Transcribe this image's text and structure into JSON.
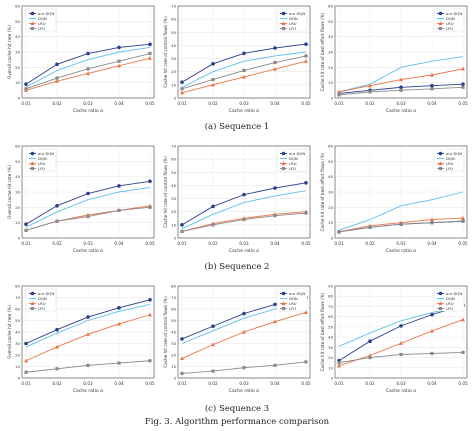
{
  "caption": "Fig. 3. Algorithm performance comparison",
  "colors": {
    "our DQN": "#2b3f8c",
    "DQN": "#5bc0eb",
    "LRU": "#e9774a",
    "LFU": "#8a8a8a"
  },
  "rows": [
    {
      "label": "(a) Sequence 1"
    },
    {
      "label": "(b) Sequence 2"
    },
    {
      "label": "(c) Sequence 3"
    }
  ],
  "chart_data": [
    {
      "type": "line",
      "row": 0,
      "col": 0,
      "xlabel": "Cache ratio α",
      "ylabel": "Overall cache hit rate (%)",
      "x": [
        "0.01",
        "0.02",
        "0.03",
        "0.04",
        "0.05"
      ],
      "ylim": [
        0,
        60
      ],
      "yticks": [
        0,
        10,
        20,
        30,
        40,
        50,
        60
      ],
      "ytick_labels": [
        "0",
        "10",
        "20",
        "30",
        "40",
        "50",
        "60"
      ],
      "legend": [
        "our DQN",
        "DQN",
        "LRU",
        "LFU"
      ],
      "legend_position": "top-left",
      "series": [
        {
          "name": "our DQN",
          "values": [
            9,
            22,
            29,
            33,
            35
          ]
        },
        {
          "name": "DQN",
          "values": [
            7,
            18,
            25,
            30,
            33
          ]
        },
        {
          "name": "LRU",
          "values": [
            5,
            11,
            16,
            21,
            26
          ]
        },
        {
          "name": "LFU",
          "values": [
            6,
            13,
            19,
            24,
            29
          ]
        }
      ]
    },
    {
      "type": "line",
      "row": 0,
      "col": 1,
      "xlabel": "Cache ratio α",
      "ylabel": "Cache hit rate of control flows (%)",
      "x": [
        "0.01",
        "0.02",
        "0.03",
        "0.04",
        "0.05"
      ],
      "ylim": [
        0,
        70
      ],
      "yticks": [
        0,
        10,
        20,
        30,
        40,
        50,
        60,
        70
      ],
      "ytick_labels": [
        "0",
        "10",
        "20",
        "30",
        "40",
        "50",
        "60",
        "70"
      ],
      "legend": [
        "our DQN",
        "DQN",
        "LRU",
        "LFU"
      ],
      "legend_position": "top-right",
      "series": [
        {
          "name": "our DQN",
          "values": [
            12,
            26,
            34,
            38,
            41
          ]
        },
        {
          "name": "DQN",
          "values": [
            8,
            20,
            28,
            32,
            35
          ]
        },
        {
          "name": "LRU",
          "values": [
            4,
            10,
            16,
            22,
            28
          ]
        },
        {
          "name": "LFU",
          "values": [
            7,
            14,
            21,
            27,
            32
          ]
        }
      ]
    },
    {
      "type": "line",
      "row": 0,
      "col": 2,
      "xlabel": "Cache ratio α",
      "ylabel": "Cache hit rate of best effort flows (%)",
      "x": [
        "0.01",
        "0.02",
        "0.03",
        "0.04",
        "0.05"
      ],
      "ylim": [
        0,
        60
      ],
      "yticks": [
        0,
        10,
        20,
        30,
        40,
        50,
        60
      ],
      "ytick_labels": [
        "0",
        "10",
        "20",
        "30",
        "40",
        "50",
        "60"
      ],
      "legend": [
        "our DQN",
        "DQN",
        "LRU",
        "LFU"
      ],
      "legend_position": "top-right",
      "series": [
        {
          "name": "our DQN",
          "values": [
            3,
            5,
            7,
            8,
            9
          ]
        },
        {
          "name": "DQN",
          "values": [
            4,
            9,
            20,
            24,
            27
          ]
        },
        {
          "name": "LRU",
          "values": [
            4,
            8,
            12,
            15,
            19
          ]
        },
        {
          "name": "LFU",
          "values": [
            2,
            4,
            5,
            6,
            7
          ]
        }
      ]
    },
    {
      "type": "line",
      "row": 1,
      "col": 0,
      "xlabel": "Cache ratio α",
      "ylabel": "Overall cache hit rate (%)",
      "x": [
        "0.01",
        "0.02",
        "0.03",
        "0.04",
        "0.05"
      ],
      "ylim": [
        0,
        60
      ],
      "yticks": [
        0,
        10,
        20,
        30,
        40,
        50,
        60
      ],
      "ytick_labels": [
        "0",
        "10",
        "20",
        "30",
        "40",
        "50",
        "60"
      ],
      "legend": [
        "our DQN",
        "DQN",
        "LRU",
        "LFU"
      ],
      "legend_position": "top-left",
      "series": [
        {
          "name": "our DQN",
          "values": [
            9,
            21,
            29,
            34,
            37
          ]
        },
        {
          "name": "DQN",
          "values": [
            7,
            17,
            25,
            30,
            33
          ]
        },
        {
          "name": "LRU",
          "values": [
            5,
            11,
            15,
            18,
            21
          ]
        },
        {
          "name": "LFU",
          "values": [
            5,
            11,
            14,
            18,
            20
          ]
        }
      ]
    },
    {
      "type": "line",
      "row": 1,
      "col": 1,
      "xlabel": "Cache ratio α",
      "ylabel": "Cache hit rate of control flows (%)",
      "x": [
        "0.01",
        "0.02",
        "0.03",
        "0.04",
        "0.05"
      ],
      "ylim": [
        0,
        70
      ],
      "yticks": [
        0,
        10,
        20,
        30,
        40,
        50,
        60,
        70
      ],
      "ytick_labels": [
        "0",
        "10",
        "20",
        "30",
        "40",
        "50",
        "60",
        "70"
      ],
      "legend": [
        "our DQN",
        "DQN",
        "LRU",
        "LFU"
      ],
      "legend_position": "top-right",
      "series": [
        {
          "name": "our DQN",
          "values": [
            10,
            24,
            33,
            38,
            42
          ]
        },
        {
          "name": "DQN",
          "values": [
            7,
            18,
            27,
            32,
            36
          ]
        },
        {
          "name": "LRU",
          "values": [
            5,
            11,
            15,
            18,
            20
          ]
        },
        {
          "name": "LFU",
          "values": [
            5,
            10,
            14,
            17,
            19
          ]
        }
      ]
    },
    {
      "type": "line",
      "row": 1,
      "col": 2,
      "xlabel": "Cache ratio α",
      "ylabel": "Cache hit rate of best effort flows (%)",
      "x": [
        "0.01",
        "0.02",
        "0.03",
        "0.04",
        "0.05"
      ],
      "ylim": [
        0,
        60
      ],
      "yticks": [
        0,
        10,
        20,
        30,
        40,
        50,
        60
      ],
      "ytick_labels": [
        "0",
        "10",
        "20",
        "30",
        "40",
        "50",
        "60"
      ],
      "legend": [
        "our DQN",
        "DQN",
        "LRU",
        "LFU"
      ],
      "legend_position": "top-right",
      "series": [
        {
          "name": "our DQN",
          "values": [
            4,
            7,
            9,
            10,
            11
          ]
        },
        {
          "name": "DQN",
          "values": [
            5,
            12,
            21,
            25,
            30
          ]
        },
        {
          "name": "LRU",
          "values": [
            4,
            8,
            10,
            12,
            13
          ]
        },
        {
          "name": "LFU",
          "values": [
            4,
            7,
            9,
            10,
            11
          ]
        }
      ]
    },
    {
      "type": "line",
      "row": 2,
      "col": 0,
      "xlabel": "Cache ratio α",
      "ylabel": "Overall cache hit rate (%)",
      "x": [
        "0.01",
        "0.02",
        "0.03",
        "0.04",
        "0.05"
      ],
      "ylim": [
        0,
        80
      ],
      "yticks": [
        0,
        10,
        20,
        30,
        40,
        50,
        60,
        70,
        80
      ],
      "ytick_labels": [
        "0",
        "10",
        "20",
        "30",
        "40",
        "50",
        "60",
        "70",
        "80"
      ],
      "legend": [
        "our DQN",
        "DQN",
        "LRU",
        "LFU"
      ],
      "legend_position": "top-left",
      "series": [
        {
          "name": "our DQN",
          "values": [
            30,
            42,
            53,
            61,
            68
          ]
        },
        {
          "name": "DQN",
          "values": [
            27,
            39,
            50,
            58,
            64
          ]
        },
        {
          "name": "LRU",
          "values": [
            15,
            27,
            38,
            47,
            55
          ]
        },
        {
          "name": "LFU",
          "values": [
            5,
            8,
            11,
            13,
            15
          ]
        }
      ]
    },
    {
      "type": "line",
      "row": 2,
      "col": 1,
      "xlabel": "Cache ratio α",
      "ylabel": "Cache hit rate of control flows (%)",
      "x": [
        "0.01",
        "0.02",
        "0.03",
        "0.04",
        "0.05"
      ],
      "x_tick_labels": [
        "0.01",
        "0.02",
        "0.03",
        "0.04",
        "0.05"
      ],
      "ylim": [
        0,
        80
      ],
      "yticks": [
        0,
        10,
        20,
        30,
        40,
        50,
        60,
        70,
        80
      ],
      "ytick_labels": [
        "0",
        "10",
        "20",
        "30",
        "40",
        "50",
        "60",
        "70",
        "80"
      ],
      "legend": [
        "our DQN",
        "DQN",
        "LRU",
        "LFU"
      ],
      "legend_position": "top-right",
      "series": [
        {
          "name": "our DQN",
          "values": [
            34,
            45,
            56,
            64,
            70
          ]
        },
        {
          "name": "DQN",
          "values": [
            30,
            41,
            52,
            60,
            66
          ]
        },
        {
          "name": "LRU",
          "values": [
            17,
            29,
            40,
            49,
            57
          ]
        },
        {
          "name": "LFU",
          "values": [
            4,
            6,
            9,
            11,
            14
          ]
        }
      ]
    },
    {
      "type": "line",
      "row": 2,
      "col": 2,
      "xlabel": "Cache ratio α",
      "ylabel": "Cache hit rate of best effort flows (%)",
      "x": [
        "0.01",
        "0.02",
        "0.03",
        "0.04",
        "0.05"
      ],
      "ylim": [
        0,
        90
      ],
      "yticks": [
        0,
        10,
        20,
        30,
        40,
        50,
        60,
        70,
        80,
        90
      ],
      "ytick_labels": [
        "0",
        "10",
        "20",
        "30",
        "40",
        "50",
        "60",
        "70",
        "80",
        "90"
      ],
      "legend": [
        "our DQN",
        "DQN",
        "LRU",
        "LFU"
      ],
      "legend_position": "top-right",
      "series": [
        {
          "name": "our DQN",
          "values": [
            17,
            36,
            51,
            62,
            71
          ]
        },
        {
          "name": "DQN",
          "values": [
            31,
            44,
            56,
            64,
            70
          ]
        },
        {
          "name": "LRU",
          "values": [
            12,
            22,
            34,
            46,
            57
          ]
        },
        {
          "name": "LFU",
          "values": [
            15,
            20,
            23,
            24,
            25
          ]
        }
      ]
    }
  ]
}
